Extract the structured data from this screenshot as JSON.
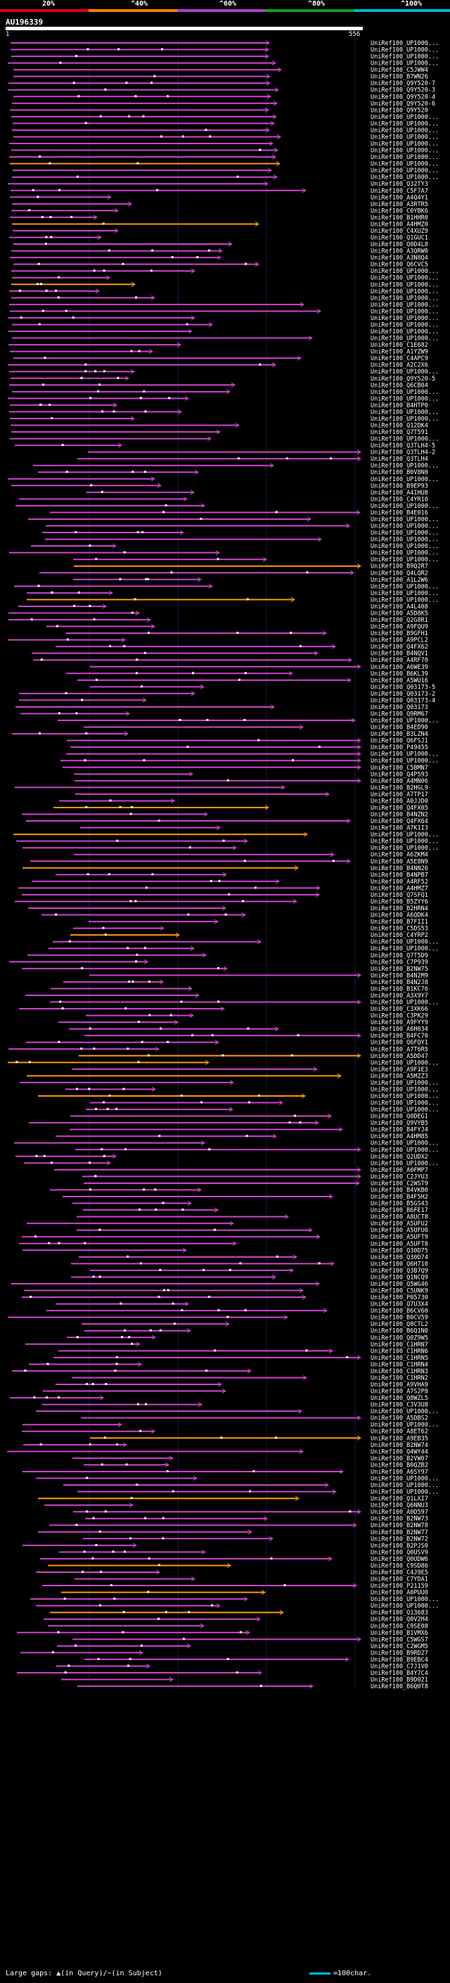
{
  "legend": {
    "labels": [
      "20%",
      "^40%",
      "^60%",
      "^80%",
      "^100%"
    ],
    "colors": [
      "#e0000f",
      "#ff7f00",
      "#b23cc8",
      "#10a010",
      "#00b4d8"
    ]
  },
  "query": {
    "id": "AU196339",
    "start": "1",
    "end": "556"
  },
  "footer": {
    "gaps_text": "Large gaps: ▲(in Query)/~(in Subject)",
    "scale_text": "=100char."
  },
  "hits": [
    "UniRef100_UP1000...",
    "UniRef100_UP1000...",
    "UniRef100_UP1000...",
    "UniRef100_UP1000...",
    "UniRef100_C5JWW4",
    "UniRef100_B7WN26",
    "UniRef100_Q9Y520-7",
    "UniRef100_Q9Y520-3",
    "UniRef100_Q9Y520-4",
    "UniRef100_Q9Y520-6",
    "UniRef100_Q9Y520",
    "UniRef100_UP1000...",
    "UniRef100_UP1000...",
    "UniRef100_UP1000...",
    "UniRef100_UP1000...",
    "UniRef100_UP1000...",
    "UniRef100_UP1000...",
    "UniRef100_UP1000...",
    "UniRef100_UP1000...",
    "UniRef100_UP1000...",
    "UniRef100_UP1000...",
    "UniRef100_Q32TY3",
    "UniRef100_C5F7A7",
    "UniRef100_A4Q4Y1",
    "UniRef100_A3RTR5",
    "UniRef100_C0YBK6",
    "UniRef100_B1HHR0",
    "UniRef100_A4HMZ0",
    "UniRef100_C4XUZ9",
    "UniRef100_Q1GUC1",
    "UniRef100_Q0D4L8",
    "UniRef100_A3QRW0",
    "UniRef100_A3N8Q4",
    "UniRef100_Q6CVC5",
    "UniRef100_UP1000...",
    "UniRef100_UP1000...",
    "UniRef100_UP1000...",
    "UniRef100_UP1000...",
    "UniRef100_UP1000...",
    "UniRef100_UP1000...",
    "UniRef100_UP1000...",
    "UniRef100_UP1000...",
    "UniRef100_UP1000...",
    "UniRef100_UP1000...",
    "UniRef100_UP1000...",
    "UniRef100_C1E682",
    "UniRef100_A1YZW9",
    "UniRef100_C4APC9",
    "UniRef100_A2C2X6",
    "UniRef100_UP1000...",
    "UniRef100_Q9Y520-5",
    "UniRef100_Q6CB04",
    "UniRef100_UP1000...",
    "UniRef100_UP1000...",
    "UniRef100_B4HTP0",
    "UniRef100_UP1000...",
    "UniRef100_UP1000...",
    "UniRef100_Q12DK4",
    "UniRef100_Q7T591",
    "UniRef100_UP1000...",
    "UniRef100_Q3TLH4-5",
    "UniRef100_Q3TLH4-2",
    "UniRef100_Q3TLH4",
    "UniRef100_UP1000...",
    "UniRef100_B0V8N0",
    "UniRef100_UP1000...",
    "UniRef100_B9EP93",
    "UniRef100_A4IHU8",
    "UniRef100_C4YR16",
    "UniRef100_UP1000...",
    "UniRef100_B4E016",
    "UniRef100_UP1000...",
    "UniRef100_UP1000...",
    "UniRef100_UP1000...",
    "UniRef100_UP1000...",
    "UniRef100_UP1000...",
    "UniRef100_UP1000...",
    "UniRef100_UP1000...",
    "UniRef100_B9Q2R7",
    "UniRef100_Q4LQR2",
    "UniRef100_A1L2W6",
    "UniRef100_UP1000...",
    "UniRef100_UP1000...",
    "UniRef100_UP1000...",
    "UniRef100_A4L408",
    "UniRef100_A5D8K5",
    "UniRef100_Q2G8R1",
    "UniRef100_A9FQU9",
    "UniRef100_B9GFH1",
    "UniRef100_A9PCL2",
    "UniRef100_Q4FX62",
    "UniRef100_B4NQV1",
    "UniRef100_A4RF70",
    "UniRef100_A6WE39",
    "UniRef100_B6KL39",
    "UniRef100_A5WU16",
    "UniRef100_Q03173-5",
    "UniRef100_Q03173-2",
    "UniRef100_Q03173-4",
    "UniRef100_Q03173",
    "UniRef100_Q9RM67",
    "UniRef100_UP1000...",
    "UniRef100_B4ED90",
    "UniRef100_B3LZN4",
    "UniRef100_Q6FSJ1",
    "UniRef100_P49455",
    "UniRef100_UP1000...",
    "UniRef100_UP1000...",
    "UniRef100_C5BMN7",
    "UniRef100_Q4P593",
    "UniRef100_A4MN06",
    "UniRef100_B2HGL9",
    "UniRef100_A7TP17",
    "UniRef100_A0JJD0",
    "UniRef100_Q4FX05",
    "UniRef100_B4NZN2",
    "UniRef100_Q4FX64",
    "UniRef100_A7K1I3",
    "UniRef100_UP1000...",
    "UniRef100_UP1000...",
    "UniRef100_UP1000...",
    "UniRef100_A6ZKM4",
    "UniRef100_A5E8N9",
    "UniRef100_B4NN26",
    "UniRef100_B4NPB7",
    "UniRef100_A4RF52",
    "UniRef100_A4HMZ7",
    "UniRef100_Q7SFQ1",
    "UniRef100_B5ZYY6",
    "UniRef100_B2HRN4",
    "UniRef100_A6QDK4",
    "UniRef100_B7FII1",
    "UniRef100_C5DS53",
    "UniRef100_C4YRP2",
    "UniRef100_UP1000...",
    "UniRef100_UP1000...",
    "UniRef100_Q7T5D9",
    "UniRef100_C7P939",
    "UniRef100_B2NW75",
    "UniRef100_B4N2M9",
    "UniRef100_B4N2J8",
    "UniRef100_B1KC76",
    "UniRef100_A3X9Y7",
    "UniRef100_UP1000...",
    "UniRef100_C3XK66",
    "UniRef100_C3PK29",
    "UniRef100_A9FYY9",
    "UniRef100_A6H034",
    "UniRef100_B4FC70",
    "UniRef100_Q6FQY1",
    "UniRef100_A7T6R5",
    "UniRef100_A5DD47",
    "UniRef100_UP1000...",
    "UniRef100_A9F1E3",
    "UniRef100_A5MZZ3",
    "UniRef100_UP1000...",
    "UniRef100_UP1000...",
    "UniRef100_UP1000...",
    "UniRef100_UP1000...",
    "UniRef100_UP1000...",
    "UniRef100_Q0DEG1",
    "UniRef100_Q9VYB5",
    "UniRef100_B4FYJ4",
    "UniRef100_A4HM85",
    "UniRef100_UP1000...",
    "UniRef100_UP1000...",
    "UniRef100_Q2UDX2",
    "UniRef100_UP1000...",
    "UniRef100_A0FMP7",
    "UniRef100_C2JYU3",
    "UniRef100_C2WST9",
    "UniRef100_B4VKB0",
    "UniRef100_B4F5H2",
    "UniRef100_B5GS43",
    "UniRef100_B6FE17",
    "UniRef100_A8UCT8",
    "UniRef100_A5UFU2",
    "UniRef100_A5UFU0",
    "UniRef100_A5UFT9",
    "UniRef100_A5UFT8",
    "UniRef100_Q30D75",
    "UniRef100_Q30D74",
    "UniRef100_Q6H710",
    "UniRef100_Q3B7Q9",
    "UniRef100_Q1NCQ9",
    "UniRef100_Q5WG46",
    "UniRef100_C5UNK9",
    "UniRef100_P05730",
    "UniRef100_Q7U3X4",
    "UniRef100_B6CV60",
    "UniRef100_B0CV59",
    "UniRef100_Q8CTL2",
    "UniRef100_B6Q1N0",
    "UniRef100_Q0Z9W5",
    "UniRef100_C1HRN7",
    "UniRef100_C1HRN6",
    "UniRef100_C1HRN5",
    "UniRef100_C1HRN4",
    "UniRef100_C1HRN3",
    "UniRef100_C1HRN2",
    "UniRef100_A9VHA9",
    "UniRef100_A7S2P8",
    "UniRef100_Q8WZL5",
    "UniRef100_C3V3U8",
    "UniRef100_UP1000...",
    "UniRef100_A5DBS2",
    "UniRef100_UP1000...",
    "UniRef100_A8ET62",
    "UniRef100_A9EB35",
    "UniRef100_B2NW74",
    "UniRef100_Q4WY44",
    "UniRef100_B2VW07",
    "UniRef100_B0QZB2",
    "UniRef100_A6SY97",
    "UniRef100_UP1000...",
    "UniRef100_UP1000...",
    "UniRef100_UP1000...",
    "UniRef100_Q1LXI7",
    "UniRef100_Q6NNU3",
    "UniRef100_A0D597",
    "UniRef100_B2NW73",
    "UniRef100_B2NW78",
    "UniRef100_B2NW77",
    "UniRef100_B2NW72",
    "UniRef100_B2PJS0",
    "UniRef100_Q0USV9",
    "UniRef100_Q0UDW6",
    "UniRef100_C9SD86",
    "UniRef100_C4J9E5",
    "UniRef100_C7YDA1",
    "UniRef100_P21159",
    "UniRef100_A0PUU0",
    "UniRef100_UP1000...",
    "UniRef100_UP1000...",
    "UniRef100_Q13683",
    "UniRef100_Q0V2H4",
    "UniRef100_C9SE08",
    "UniRef100_B1VMX6",
    "UniRef100_C5WGS7",
    "UniRef100_C2WGM5",
    "UniRef100_B9RD27",
    "UniRef100_B9EBC4",
    "UniRef100_C7J1V0",
    "UniRef100_B4Y7C4",
    "UniRef100_B9D021",
    "UniRef100_B6Q0T8"
  ]
}
